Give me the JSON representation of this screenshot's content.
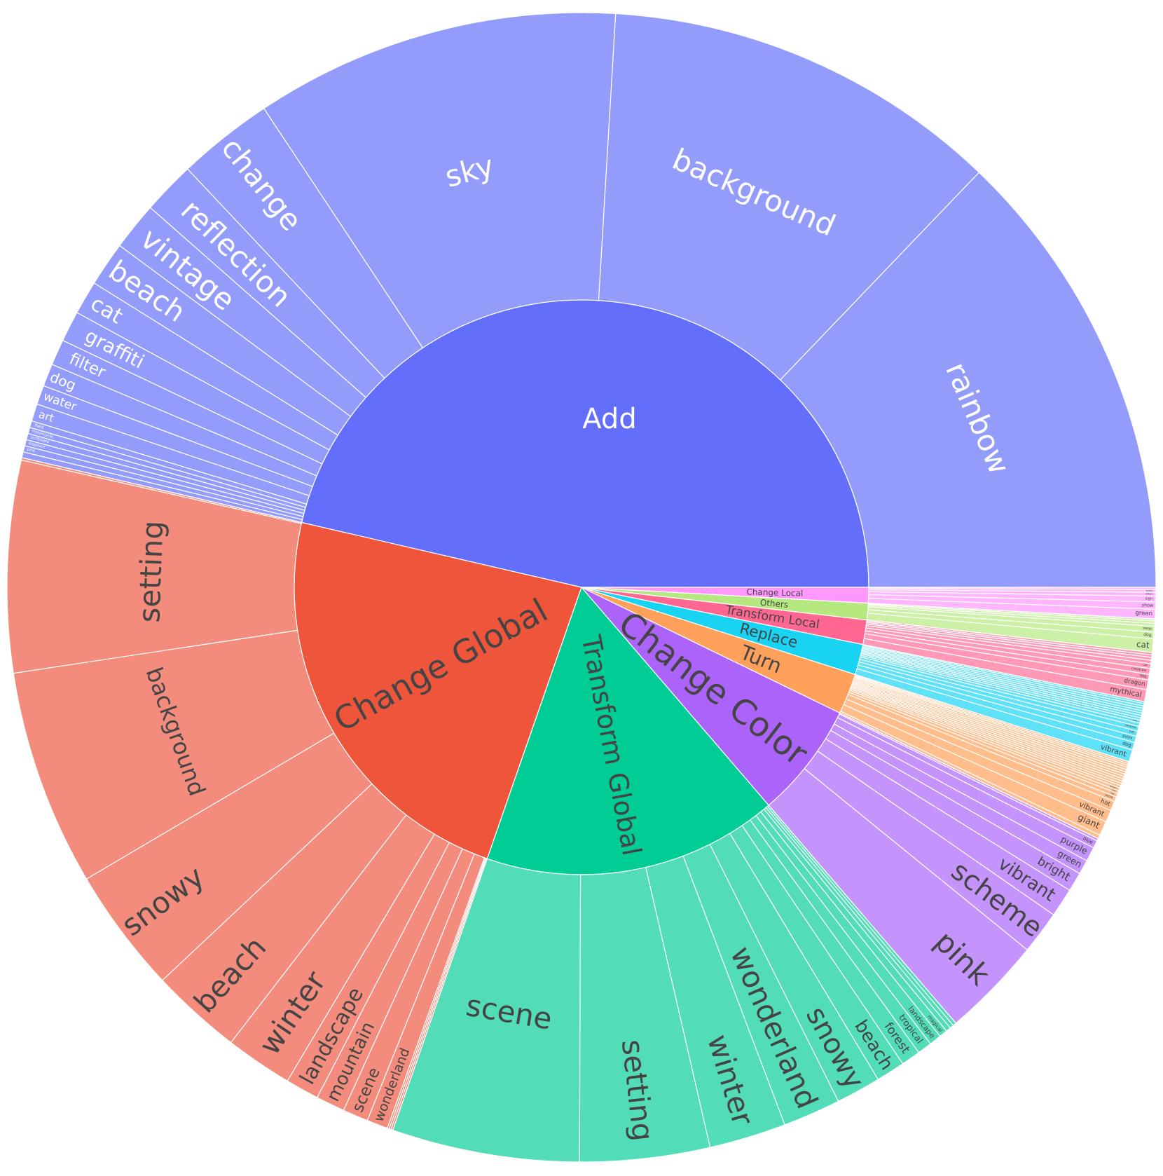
{
  "chart_data": {
    "type": "sunburst",
    "title": "",
    "start": "top-level categories arranged counter-clockwise beginning at 3 o'clock",
    "categories": [
      {
        "name": "Add",
        "color": "#636EFA",
        "child_color": "#939CFB",
        "label_color": "#ffffff",
        "children": [
          {
            "name": "rainbow",
            "value": 95
          },
          {
            "name": "background",
            "value": 83
          },
          {
            "name": "sky",
            "value": 76
          },
          {
            "name": "change",
            "value": 20
          },
          {
            "name": "reflection",
            "value": 11
          },
          {
            "name": "vintage",
            "value": 10
          },
          {
            "name": "beach",
            "value": 9.3
          },
          {
            "name": "cat",
            "value": 7
          },
          {
            "name": "graffiti",
            "value": 6.4
          },
          {
            "name": "filter",
            "value": 5.4
          },
          {
            "name": "dog",
            "value": 4.7
          },
          {
            "name": "water",
            "value": 4
          },
          {
            "name": "art",
            "value": 3.6
          },
          {
            "name": "field",
            "value": 1.4
          },
          {
            "name": "motorcycle",
            "value": 1.3
          },
          {
            "name": "surfboard",
            "value": 1.3
          },
          {
            "name": "elephant",
            "value": 1.3
          },
          {
            "name": "pink",
            "value": 1.3
          },
          {
            "name": "",
            "value": 1.2
          }
        ]
      },
      {
        "name": "Change Global",
        "color": "#EF553B",
        "child_color": "#F38C7C",
        "label_color": "#444444",
        "children": [
          {
            "name": "",
            "value": 0.5
          },
          {
            "name": "setting",
            "value": 44
          },
          {
            "name": "background",
            "value": 45
          },
          {
            "name": "snowy",
            "value": 26
          },
          {
            "name": "beach",
            "value": 19
          },
          {
            "name": "winter",
            "value": 14
          },
          {
            "name": "landscape",
            "value": 7
          },
          {
            "name": "mountain",
            "value": 6
          },
          {
            "name": "scene",
            "value": 5.3
          },
          {
            "name": "wonderland",
            "value": 4.4
          },
          {
            "name": "",
            "value": 0.4
          },
          {
            "name": "",
            "value": 0.4
          },
          {
            "name": "",
            "value": 0.4
          }
        ]
      },
      {
        "name": "Transform Global",
        "color": "#00CC96",
        "child_color": "#52DCB8",
        "label_color": "#444444",
        "children": [
          {
            "name": "scene",
            "value": 39
          },
          {
            "name": "setting",
            "value": 27
          },
          {
            "name": "winter",
            "value": 16
          },
          {
            "name": "wonderland",
            "value": 12
          },
          {
            "name": "snowy",
            "value": 9.3
          },
          {
            "name": "beach",
            "value": 6
          },
          {
            "name": "forest",
            "value": 4
          },
          {
            "name": "tropical",
            "value": 3
          },
          {
            "name": "landscape",
            "value": 2.5
          },
          {
            "name": "magical",
            "value": 1.7
          },
          {
            "name": "",
            "value": 1
          },
          {
            "name": "",
            "value": 0.8
          },
          {
            "name": "",
            "value": 0.7
          }
        ]
      },
      {
        "name": "Change Color",
        "color": "#AB63FA",
        "child_color": "#C493FB",
        "label_color": "#444444",
        "children": [
          {
            "name": "pink",
            "value": 21
          },
          {
            "name": "scheme",
            "value": 9
          },
          {
            "name": "vibrant",
            "value": 6
          },
          {
            "name": "bright",
            "value": 4
          },
          {
            "name": "green",
            "value": 3
          },
          {
            "name": "purple",
            "value": 3
          },
          {
            "name": "blue",
            "value": 1.6
          },
          {
            "name": "",
            "value": 0.5
          }
        ]
      },
      {
        "name": "Turn",
        "color": "#FFA15A",
        "child_color": "#FFBD8C",
        "label_color": "#444444",
        "children": [
          {
            "name": "",
            "value": 0.8
          },
          {
            "name": "giant",
            "value": 3
          },
          {
            "name": "vibrant",
            "value": 2.5
          },
          {
            "name": "hot",
            "value": 2
          },
          {
            "name": "pizza",
            "value": 1
          },
          {
            "name": "cat",
            "value": 0.8
          },
          {
            "name": "dog",
            "value": 0.6
          },
          {
            "name": "dragon",
            "value": 0.6
          },
          {
            "name": "",
            "value": 0.5
          },
          {
            "name": "",
            "value": 0.5
          },
          {
            "name": "",
            "value": 0.5
          },
          {
            "name": "",
            "value": 0.5
          },
          {
            "name": "",
            "value": 0.5
          },
          {
            "name": "",
            "value": 0.5
          },
          {
            "name": "",
            "value": 0.5
          },
          {
            "name": "",
            "value": 0.5
          },
          {
            "name": "",
            "value": 0.5
          },
          {
            "name": "",
            "value": 0.4
          },
          {
            "name": "",
            "value": 0.4
          },
          {
            "name": "",
            "value": 0.4
          }
        ]
      },
      {
        "name": "Replace",
        "color": "#19D3F3",
        "child_color": "#5FE1F7",
        "label_color": "#444444",
        "children": [
          {
            "name": "vibrant",
            "value": 2.5
          },
          {
            "name": "dog",
            "value": 1.6
          },
          {
            "name": "pizza",
            "value": 1.3
          },
          {
            "name": "cat",
            "value": 1.1
          },
          {
            "name": "remove",
            "value": 1
          },
          {
            "name": "",
            "value": 0.7
          },
          {
            "name": "pink",
            "value": 0.6
          },
          {
            "name": "",
            "value": 0.5
          },
          {
            "name": "",
            "value": 0.5
          },
          {
            "name": "",
            "value": 0.5
          },
          {
            "name": "",
            "value": 0.5
          },
          {
            "name": "",
            "value": 0.5
          },
          {
            "name": "",
            "value": 0.5
          },
          {
            "name": "",
            "value": 0.5
          },
          {
            "name": "",
            "value": 0.4
          }
        ]
      },
      {
        "name": "Transform Local",
        "color": "#FF6692",
        "child_color": "#FF99B6",
        "label_color": "#444444",
        "children": [
          {
            "name": "mythical",
            "value": 2.5
          },
          {
            "name": "dragon",
            "value": 2
          },
          {
            "name": "dog",
            "value": 1.2
          },
          {
            "name": "creature",
            "value": 1.2
          },
          {
            "name": "cat",
            "value": 1
          },
          {
            "name": "",
            "value": 0.7
          },
          {
            "name": "",
            "value": 0.6
          },
          {
            "name": "",
            "value": 0.5
          },
          {
            "name": "",
            "value": 0.5
          }
        ]
      },
      {
        "name": "Others",
        "color": "#B6E880",
        "child_color": "#CCF0A6",
        "label_color": "#444444",
        "children": [
          {
            "name": "cat",
            "value": 2.8
          },
          {
            "name": "dog",
            "value": 1.4
          },
          {
            "name": "swap",
            "value": 1.2
          },
          {
            "name": "",
            "value": 0.6
          },
          {
            "name": "",
            "value": 0.5
          },
          {
            "name": "",
            "value": 0.4
          }
        ]
      },
      {
        "name": "Change Local",
        "color": "#FF97FF",
        "child_color": "#FFB6FF",
        "label_color": "#444444",
        "children": [
          {
            "name": "green",
            "value": 2
          },
          {
            "name": "show",
            "value": 1.5
          },
          {
            "name": "sign",
            "value": 1.2
          },
          {
            "name": "effect",
            "value": 0.8
          },
          {
            "name": "bright",
            "value": 0.6
          },
          {
            "name": "",
            "value": 0.4
          }
        ]
      }
    ]
  }
}
